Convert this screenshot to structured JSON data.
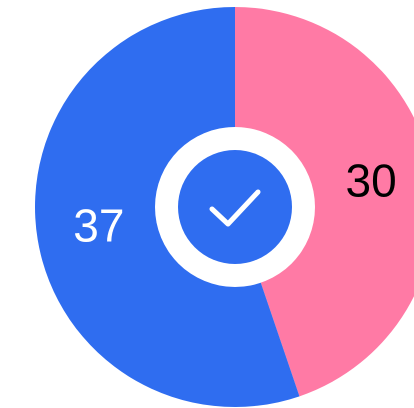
{
  "chart_data": {
    "type": "pie",
    "values": [
      30,
      37
    ],
    "colors": [
      "#ff7aa5",
      "#2f6df0"
    ],
    "label_colors": [
      "#000000",
      "#ffffff"
    ]
  }
}
